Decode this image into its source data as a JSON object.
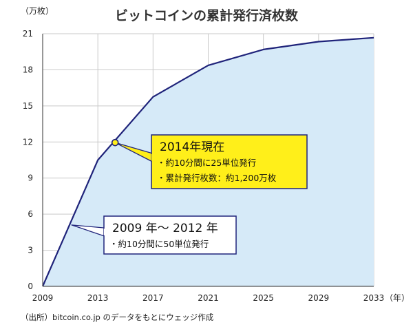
{
  "chart_data": {
    "type": "area",
    "title": "ビットコインの累計発行済枚数",
    "y_unit": "（万枚）",
    "x_unit": "（年）",
    "x": [
      2009,
      2013,
      2017,
      2021,
      2025,
      2029,
      2033
    ],
    "y": [
      0,
      10.5,
      15.75,
      18.375,
      19.6875,
      20.34,
      20.67
    ],
    "xlim": [
      2009,
      2033
    ],
    "ylim": [
      0,
      21
    ],
    "x_ticks": [
      2009,
      2013,
      2017,
      2021,
      2025,
      2029,
      2033
    ],
    "y_ticks": [
      0,
      3,
      6,
      9,
      12,
      15,
      18,
      21
    ],
    "grid": true,
    "line_color": "#1f237a",
    "fill_color": "#d6eaf8",
    "callouts": [
      {
        "heading": "2014年現在",
        "lines": [
          "・約10分間に25単位発行",
          "・累計発行枚数：約1,200万枚"
        ],
        "point": [
          2014.25,
          11.95
        ],
        "background": "#ffef1a",
        "border": "#1f237a"
      },
      {
        "heading": "2009 年～ 2012 年",
        "lines": [
          "・約10分間に50単位発行"
        ],
        "point": [
          2011.1,
          5.1
        ],
        "background": "#ffffff",
        "border": "#1f237a"
      }
    ],
    "source": "（出所）bitcoin.co.jp のデータをもとにウェッジ作成"
  }
}
